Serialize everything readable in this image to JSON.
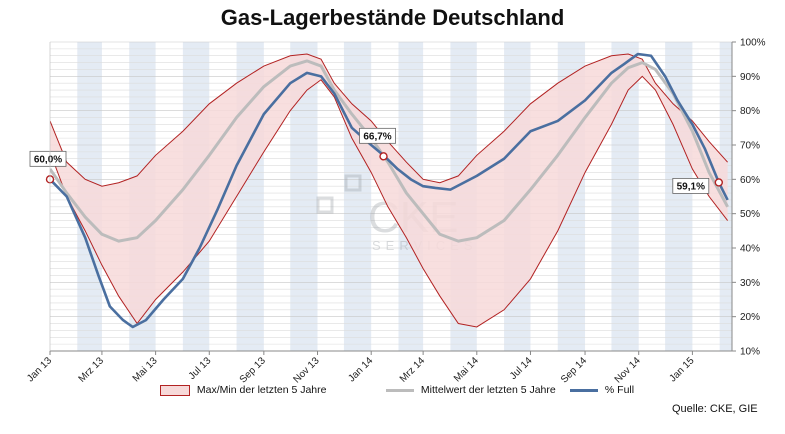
{
  "chart_data": {
    "type": "area",
    "title": "Gas-Lagerbestände Deutschland",
    "x_ticks": [
      "Jan 13",
      "Mrz 13",
      "Mai 13",
      "Jul 13",
      "Sep 13",
      "Nov 13",
      "Jan 14",
      "Mrz 14",
      "Mai 14",
      "Jul 14",
      "Sep 14",
      "Nov 14",
      "Jan 15"
    ],
    "y_ticks": [
      "10%",
      "20%",
      "30%",
      "40%",
      "50%",
      "60%",
      "70%",
      "80%",
      "90%",
      "100%"
    ],
    "ylim": [
      10,
      100
    ],
    "x_start": "2013-01-01",
    "x_end": "2015-02-15",
    "grid": true,
    "legend_position": "bottom",
    "source": "Quelle: CKE, GIE",
    "watermark": "CKE SERVICES",
    "series": [
      {
        "name": "Max/Min der letzten 5 Jahre",
        "kind": "band",
        "x": [
          "2013-01-01",
          "2013-01-20",
          "2013-02-10",
          "2013-03-01",
          "2013-03-20",
          "2013-04-10",
          "2013-05-01",
          "2013-06-01",
          "2013-07-01",
          "2013-08-01",
          "2013-09-01",
          "2013-10-01",
          "2013-10-20",
          "2013-11-05",
          "2013-11-20",
          "2013-12-10",
          "2014-01-01",
          "2014-01-20",
          "2014-02-10",
          "2014-03-01",
          "2014-03-20",
          "2014-04-10",
          "2014-05-01",
          "2014-06-01",
          "2014-07-01",
          "2014-08-01",
          "2014-09-01",
          "2014-10-01",
          "2014-10-20",
          "2014-11-05",
          "2014-11-20",
          "2014-12-10",
          "2015-01-01",
          "2015-01-20",
          "2015-02-10"
        ],
        "max": [
          77,
          65,
          60,
          58,
          59,
          61,
          67,
          74,
          82,
          88,
          93,
          96,
          96.5,
          95,
          88,
          82,
          77,
          71,
          65,
          60,
          59,
          61,
          67,
          74,
          82,
          88,
          93,
          96,
          96.5,
          95,
          88,
          82,
          77,
          71,
          65
        ],
        "min": [
          68,
          55,
          45,
          35,
          26,
          18,
          25,
          33,
          42,
          55,
          68,
          80,
          86,
          89,
          84,
          72,
          62,
          52,
          43,
          34,
          26,
          18,
          17,
          22,
          31,
          45,
          62,
          76,
          86,
          90,
          86,
          76,
          63,
          55,
          48
        ]
      },
      {
        "name": "Mittelwert der letzten 5 Jahre",
        "kind": "line",
        "color": "#bcbcbc",
        "x": [
          "2013-01-01",
          "2013-01-20",
          "2013-02-10",
          "2013-03-01",
          "2013-03-20",
          "2013-04-10",
          "2013-05-01",
          "2013-06-01",
          "2013-07-01",
          "2013-08-01",
          "2013-09-01",
          "2013-10-01",
          "2013-10-20",
          "2013-11-05",
          "2013-11-20",
          "2013-12-10",
          "2014-01-01",
          "2014-01-20",
          "2014-02-10",
          "2014-03-01",
          "2014-03-20",
          "2014-04-10",
          "2014-05-01",
          "2014-06-01",
          "2014-07-01",
          "2014-08-01",
          "2014-09-01",
          "2014-10-01",
          "2014-10-20",
          "2014-11-05",
          "2014-11-20",
          "2014-12-10",
          "2015-01-01",
          "2015-01-20",
          "2015-02-10"
        ],
        "values": [
          63,
          56,
          49,
          44,
          42,
          43,
          48,
          57,
          67,
          78,
          87,
          93,
          94.5,
          93,
          86,
          79,
          72,
          65,
          56,
          50,
          44,
          42,
          43,
          48,
          57,
          67,
          78,
          88,
          92.5,
          94,
          92,
          85,
          74,
          62,
          52
        ]
      },
      {
        "name": "% Full",
        "kind": "line",
        "color": "#4a6fa0",
        "x": [
          "2013-01-01",
          "2013-01-20",
          "2013-02-10",
          "2013-02-25",
          "2013-03-10",
          "2013-03-25",
          "2013-04-05",
          "2013-04-20",
          "2013-05-10",
          "2013-06-01",
          "2013-06-20",
          "2013-07-10",
          "2013-08-01",
          "2013-09-01",
          "2013-10-01",
          "2013-10-20",
          "2013-11-05",
          "2013-11-20",
          "2013-12-10",
          "2014-01-01",
          "2014-01-15",
          "2014-01-31",
          "2014-02-15",
          "2014-03-01",
          "2014-03-15",
          "2014-04-01",
          "2014-05-01",
          "2014-06-01",
          "2014-07-01",
          "2014-08-01",
          "2014-09-01",
          "2014-10-01",
          "2014-10-15",
          "2014-10-31",
          "2014-11-15",
          "2014-12-01",
          "2014-12-15",
          "2015-01-01",
          "2015-01-15",
          "2015-01-31",
          "2015-02-10"
        ],
        "values": [
          60,
          55,
          43,
          32,
          23,
          19,
          17,
          19,
          25,
          31,
          40,
          51,
          64,
          79,
          88,
          91,
          90,
          85,
          75,
          70,
          67,
          63,
          60,
          58,
          57.5,
          57,
          61,
          66,
          74,
          77,
          83,
          91,
          93.5,
          96.5,
          96,
          90,
          83,
          76,
          69,
          59.1,
          54
        ]
      }
    ],
    "annotations": [
      {
        "label": "60,0%",
        "date": "2013-01-01",
        "value": 60.0
      },
      {
        "label": "66,7%",
        "date": "2014-01-15",
        "value": 66.7
      },
      {
        "label": "59,1%",
        "date": "2015-01-31",
        "value": 59.1
      }
    ]
  }
}
